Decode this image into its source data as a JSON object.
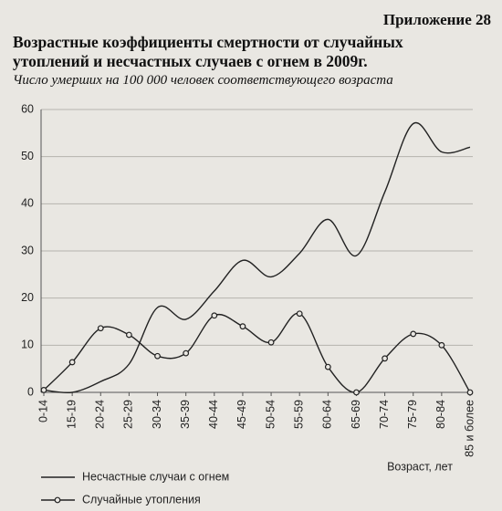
{
  "appendix": "Приложение 28",
  "chart_data": {
    "type": "line",
    "title": "Возрастные коэффициенты смертности от случайных утоплений и несчастных случаев с огнем в 2009г.",
    "subtitle": "Число умерших на 100 000 человек соответствующего возраста",
    "x_label": "Возраст, лет",
    "categories": [
      "0-14",
      "15-19",
      "20-24",
      "25-29",
      "30-34",
      "35-39",
      "40-44",
      "45-49",
      "50-54",
      "55-59",
      "60-64",
      "65-69",
      "70-74",
      "75-79",
      "80-84",
      "85 и более"
    ],
    "series": [
      {
        "name": "Несчастные случаи с огнем",
        "color": "#222222",
        "marker": false,
        "values": [
          0.5,
          0,
          2.3,
          6,
          18,
          15.5,
          21.5,
          28,
          24.5,
          29.5,
          36.7,
          29,
          42.5,
          57,
          51,
          52
        ]
      },
      {
        "name": "Случайные утопления",
        "color": "#222222",
        "marker": true,
        "values": [
          0.5,
          6.4,
          13.6,
          12.2,
          7.7,
          8.3,
          16.3,
          14,
          10.6,
          16.7,
          5.4,
          0,
          7.2,
          12.4,
          10,
          0
        ]
      }
    ],
    "ylim": [
      0,
      60
    ],
    "yticks": [
      0,
      10,
      20,
      30,
      40,
      50,
      60
    ],
    "grid": true,
    "smooth": true
  }
}
